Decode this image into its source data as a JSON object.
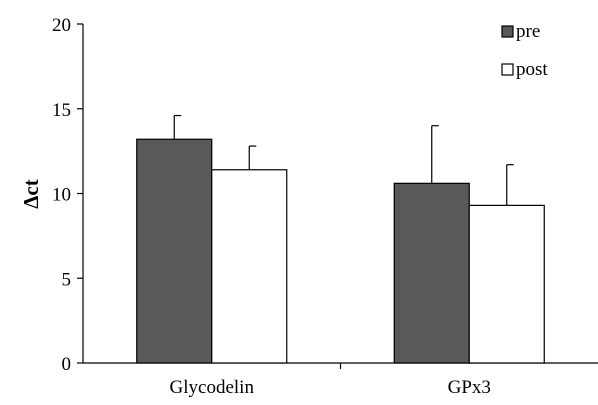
{
  "chart_data": {
    "type": "bar",
    "title": "",
    "xlabel": "",
    "ylabel": "Δct",
    "ylim": [
      0,
      20
    ],
    "yticks": [
      0,
      5,
      10,
      15,
      20
    ],
    "categories": [
      "Glycodelin",
      "GPx3"
    ],
    "series": [
      {
        "name": "pre",
        "values": [
          13.2,
          10.6
        ],
        "errors": [
          1.4,
          3.4
        ],
        "color": "#595959"
      },
      {
        "name": "post",
        "values": [
          11.4,
          9.3
        ],
        "errors": [
          1.4,
          2.4
        ],
        "color": "#ffffff"
      }
    ],
    "legend_position": "top-right",
    "grid": false
  }
}
